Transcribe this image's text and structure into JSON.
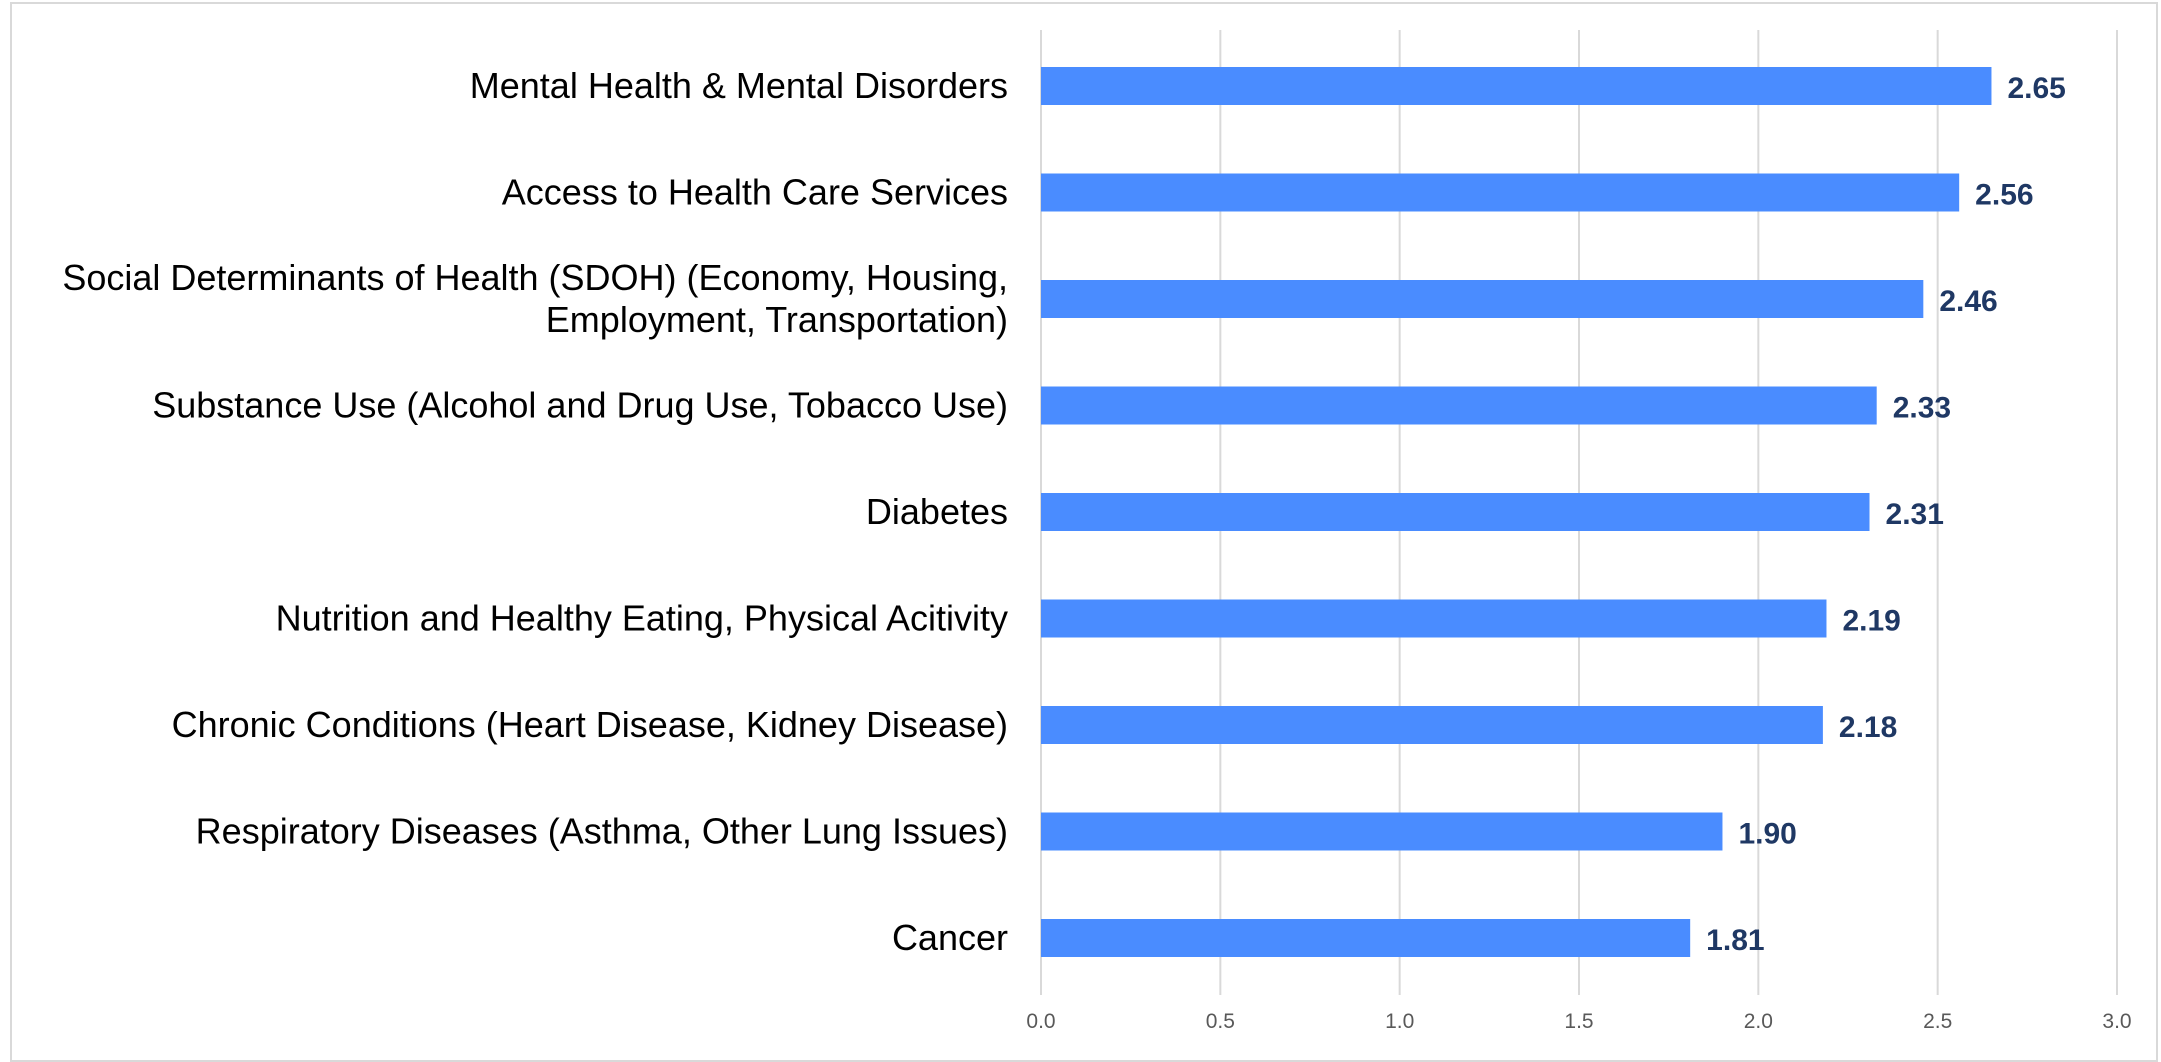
{
  "colors": {
    "bar": "#4a8cff",
    "data_label": "#1f3864",
    "grid": "#d9d9d9"
  },
  "chart_data": {
    "type": "bar",
    "orientation": "horizontal",
    "categories": [
      [
        "Mental Health & Mental Disorders"
      ],
      [
        "Access to Health Care Services"
      ],
      [
        "Social Determinants of Health (SDOH) (Economy, Housing,",
        "Employment, Transportation)"
      ],
      [
        "Substance Use (Alcohol and Drug Use, Tobacco Use)"
      ],
      [
        "Diabetes"
      ],
      [
        "Nutrition and Healthy Eating, Physical Acitivity"
      ],
      [
        "Chronic Conditions (Heart Disease, Kidney Disease)"
      ],
      [
        "Respiratory Diseases (Asthma, Other Lung Issues)"
      ],
      [
        "Cancer"
      ]
    ],
    "values": [
      2.65,
      2.56,
      2.46,
      2.33,
      2.31,
      2.19,
      2.18,
      1.9,
      1.81
    ],
    "value_labels": [
      "2.65",
      "2.56",
      "2.46",
      "2.33",
      "2.31",
      "2.19",
      "2.18",
      "1.90",
      "1.81"
    ],
    "xticks": [
      "0.0",
      "0.5",
      "1.0",
      "1.5",
      "2.0",
      "2.5",
      "3.0"
    ],
    "xlim": [
      0,
      3.0
    ],
    "grid": "vertical",
    "legend": "none",
    "title": "",
    "xlabel": "",
    "ylabel": ""
  }
}
